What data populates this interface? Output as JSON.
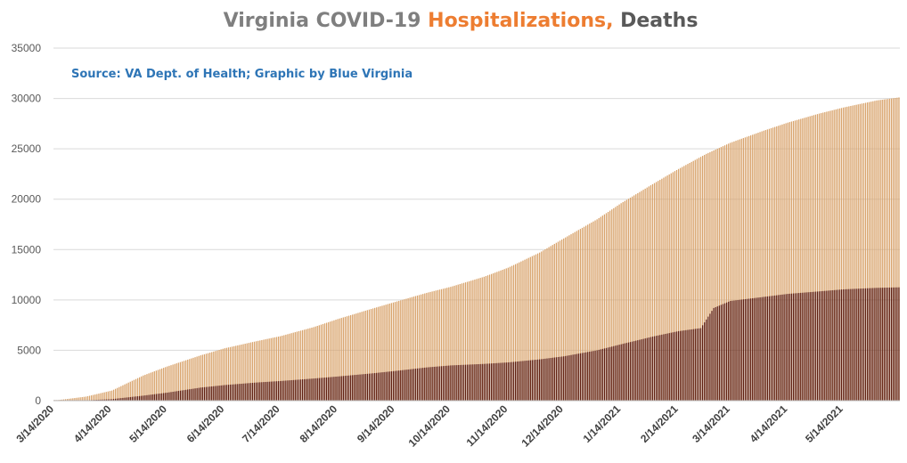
{
  "chart_data": {
    "type": "bar",
    "title_parts": [
      {
        "text": "Virginia COVID-19 ",
        "color": "#7f7f7f"
      },
      {
        "text": "Hospitalizations,",
        "color": "#ed7d31"
      },
      {
        "text": " Deaths",
        "color": "#595959"
      }
    ],
    "subtitle": "Source: VA Dept. of Health; Graphic by Blue Virginia",
    "ylim": [
      0,
      35000
    ],
    "yticks": [
      "0",
      "5000",
      "10000",
      "15000",
      "20000",
      "25000",
      "30000",
      "35000"
    ],
    "grid": true,
    "x_start": "3/14/2020",
    "x_end": "6/13/2021",
    "xtick_labels": [
      "3/14/2020",
      "4/14/2020",
      "5/14/2020",
      "6/14/2020",
      "7/14/2020",
      "8/14/2020",
      "9/14/2020",
      "10/14/2020",
      "11/14/2020",
      "12/14/2020",
      "1/14/2021",
      "2/14/2021",
      "3/14/2021",
      "4/14/2021",
      "5/14/2021"
    ],
    "series": [
      {
        "name": "Hospitalizations",
        "color": "#d8a26a",
        "points": [
          [
            "3/14/2020",
            10
          ],
          [
            "3/31/2020",
            400
          ],
          [
            "4/14/2020",
            1000
          ],
          [
            "5/1/2020",
            2500
          ],
          [
            "5/14/2020",
            3400
          ],
          [
            "6/1/2020",
            4500
          ],
          [
            "6/14/2020",
            5200
          ],
          [
            "7/1/2020",
            5900
          ],
          [
            "7/14/2020",
            6400
          ],
          [
            "8/1/2020",
            7300
          ],
          [
            "8/14/2020",
            8100
          ],
          [
            "9/1/2020",
            9100
          ],
          [
            "9/14/2020",
            9800
          ],
          [
            "10/1/2020",
            10700
          ],
          [
            "10/14/2020",
            11300
          ],
          [
            "11/1/2020",
            12300
          ],
          [
            "11/14/2020",
            13200
          ],
          [
            "12/1/2020",
            14700
          ],
          [
            "12/14/2020",
            16100
          ],
          [
            "1/1/2021",
            18000
          ],
          [
            "1/14/2021",
            19600
          ],
          [
            "2/1/2021",
            21600
          ],
          [
            "2/14/2021",
            23000
          ],
          [
            "3/1/2021",
            24500
          ],
          [
            "3/14/2021",
            25600
          ],
          [
            "4/1/2021",
            26800
          ],
          [
            "4/14/2021",
            27600
          ],
          [
            "5/1/2021",
            28500
          ],
          [
            "5/14/2021",
            29100
          ],
          [
            "6/1/2021",
            29800
          ],
          [
            "6/13/2021",
            30100
          ]
        ]
      },
      {
        "name": "Deaths",
        "color": "#5c1a0b",
        "points": [
          [
            "3/14/2020",
            0
          ],
          [
            "3/31/2020",
            40
          ],
          [
            "4/14/2020",
            150
          ],
          [
            "5/1/2020",
            500
          ],
          [
            "5/14/2020",
            800
          ],
          [
            "6/1/2020",
            1300
          ],
          [
            "6/14/2020",
            1550
          ],
          [
            "7/1/2020",
            1800
          ],
          [
            "7/14/2020",
            1950
          ],
          [
            "8/1/2020",
            2200
          ],
          [
            "8/14/2020",
            2400
          ],
          [
            "9/1/2020",
            2700
          ],
          [
            "9/14/2020",
            2950
          ],
          [
            "10/1/2020",
            3300
          ],
          [
            "10/14/2020",
            3500
          ],
          [
            "11/1/2020",
            3650
          ],
          [
            "11/14/2020",
            3800
          ],
          [
            "12/1/2020",
            4100
          ],
          [
            "12/14/2020",
            4400
          ],
          [
            "1/1/2021",
            5000
          ],
          [
            "1/14/2021",
            5600
          ],
          [
            "2/1/2021",
            6400
          ],
          [
            "2/14/2021",
            6900
          ],
          [
            "2/26/2021",
            7200
          ],
          [
            "3/5/2021",
            9200
          ],
          [
            "3/14/2021",
            9900
          ],
          [
            "4/1/2021",
            10300
          ],
          [
            "4/14/2021",
            10600
          ],
          [
            "5/1/2021",
            10850
          ],
          [
            "5/14/2021",
            11050
          ],
          [
            "6/1/2021",
            11200
          ],
          [
            "6/13/2021",
            11250
          ]
        ]
      }
    ]
  }
}
